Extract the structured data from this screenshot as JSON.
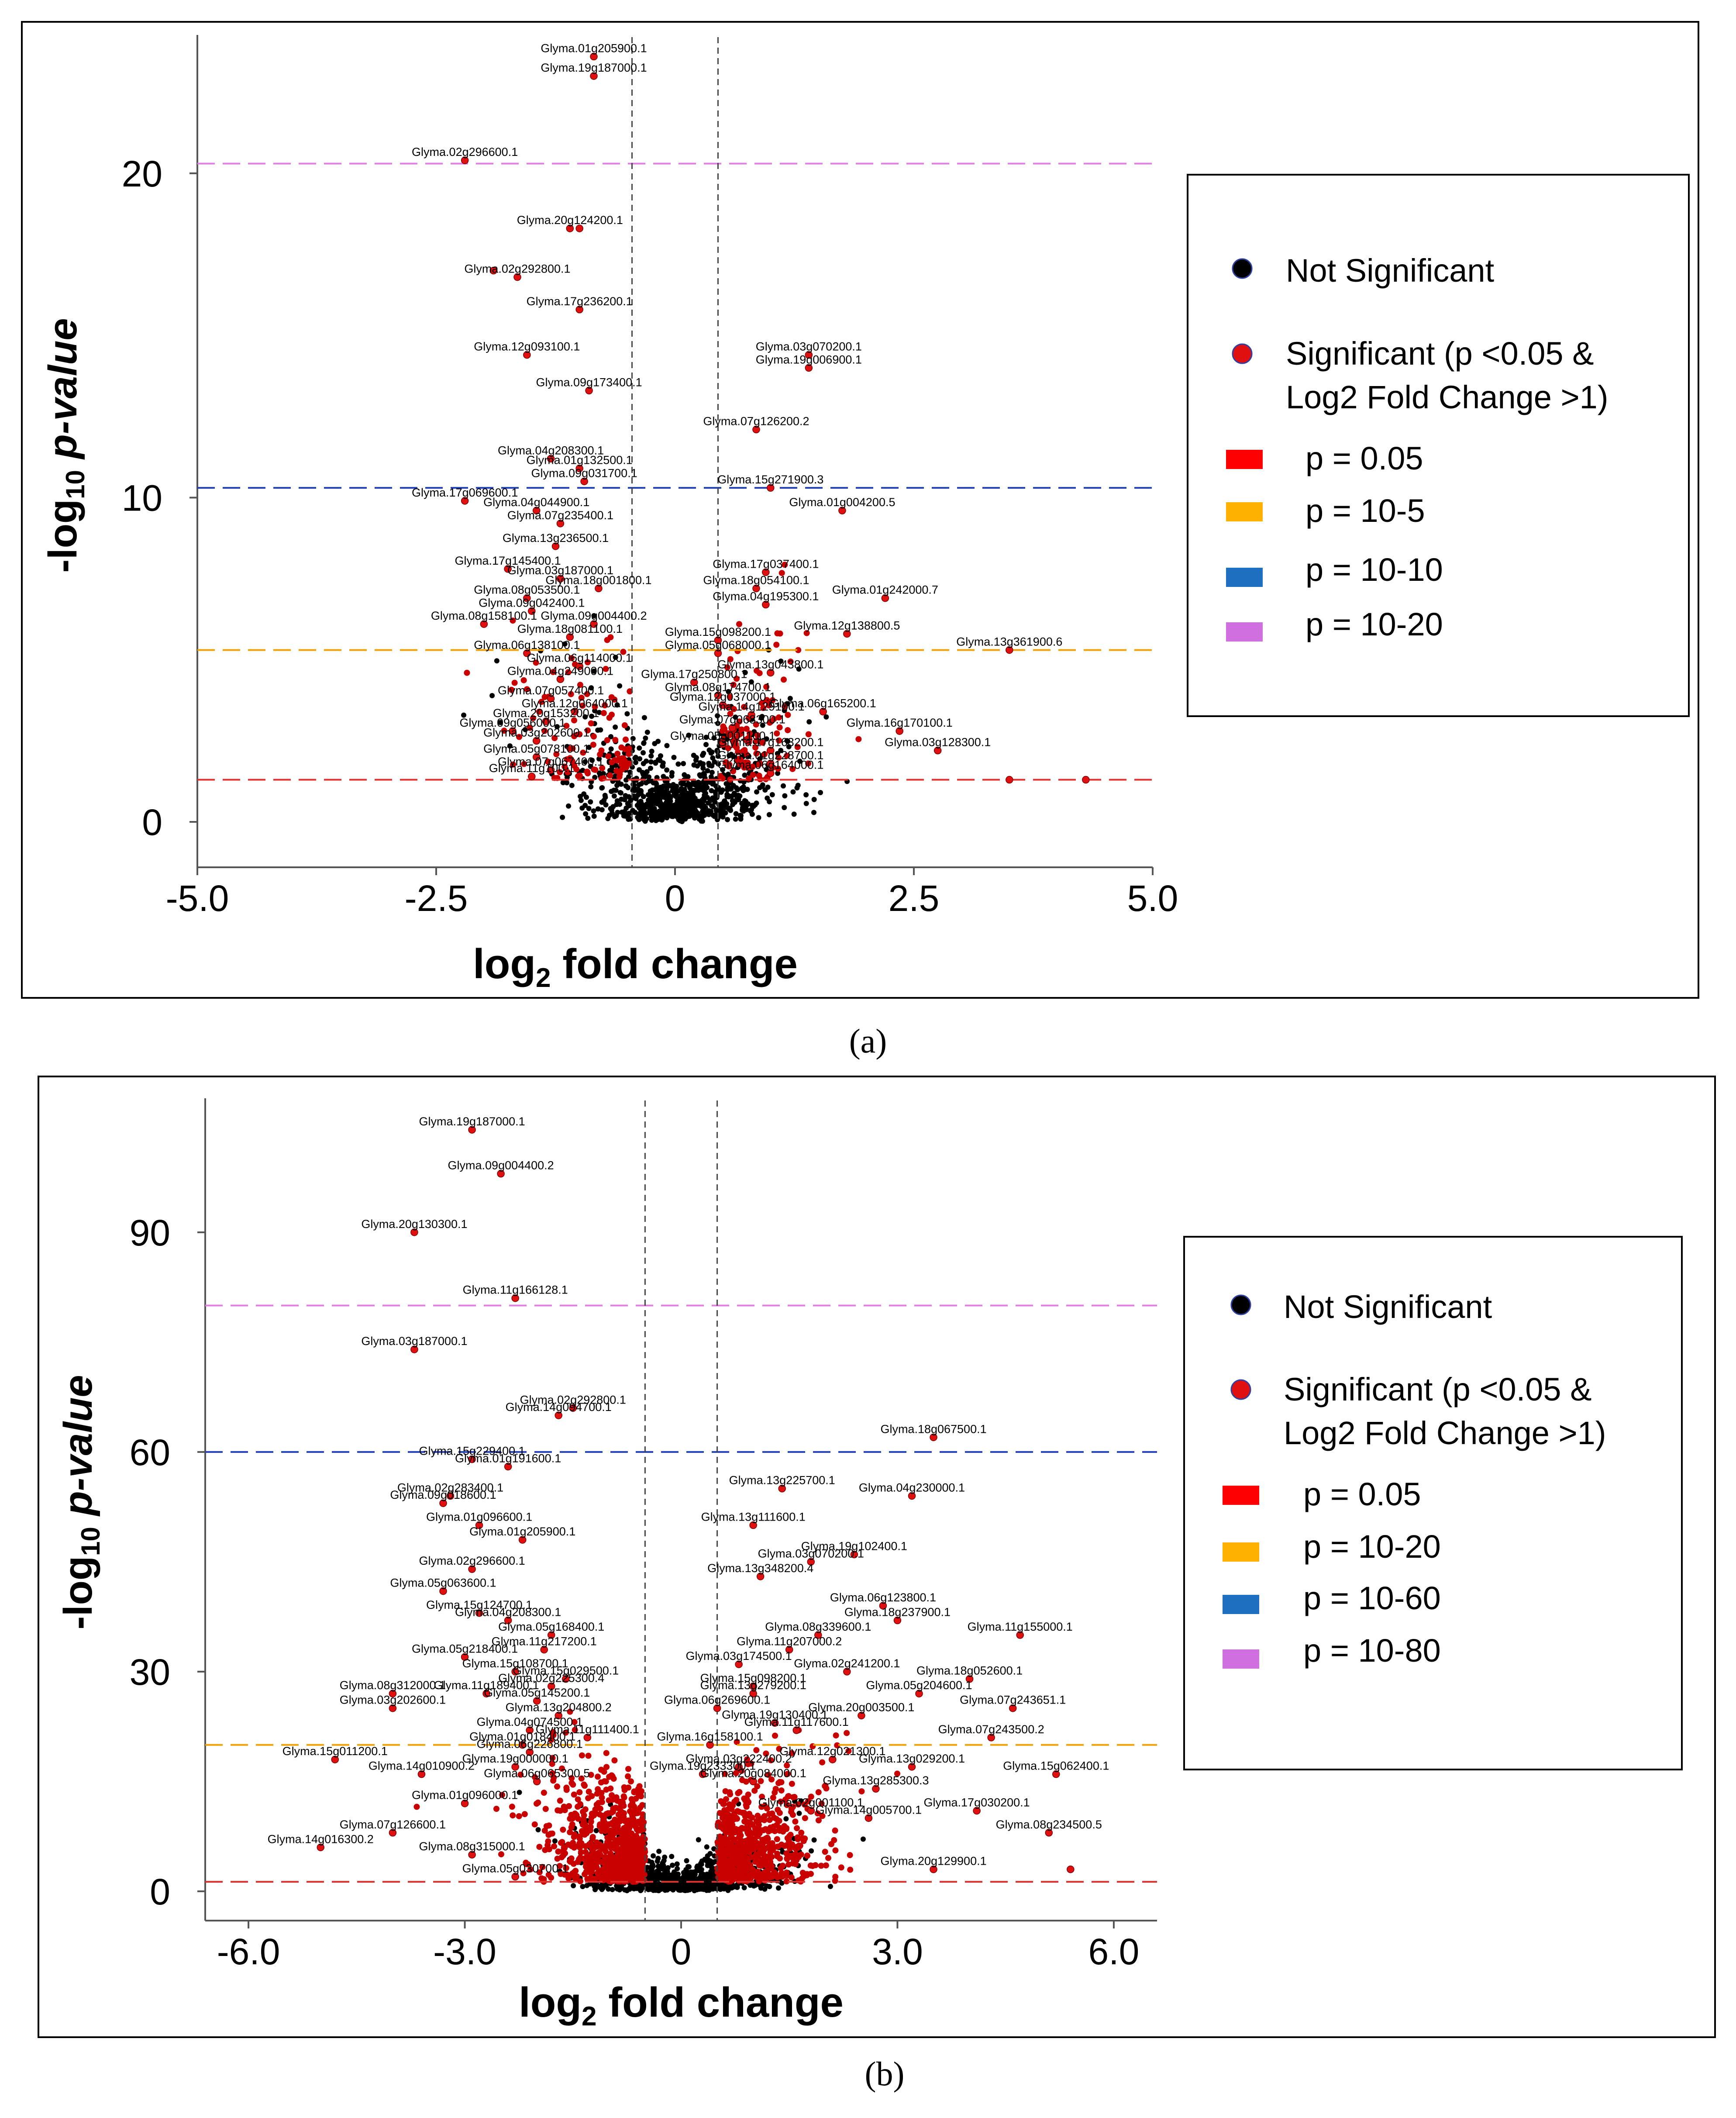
{
  "panel_a": {
    "caption": "(a)",
    "chart_data": {
      "type": "scatter",
      "title": "",
      "xlabel": "log2 fold change",
      "ylabel": "-log10 p-value",
      "x_ticks": [
        "-5.0",
        "-2.5",
        "0",
        "2.5",
        "5.0"
      ],
      "x_tick_values": [
        -5,
        -2.5,
        0,
        2.5,
        5
      ],
      "y_ticks": [
        "0",
        "10",
        "20"
      ],
      "y_tick_values": [
        0,
        10,
        20
      ],
      "xlim": [
        -5.0,
        5.0
      ],
      "ylim": [
        -1.4,
        24.2
      ],
      "fc_cutoffs": [
        -0.45,
        0.45
      ],
      "threshold_lines": [
        {
          "y": 1.3,
          "color": "#e03030",
          "label": "p = 0.05"
        },
        {
          "y": 5.3,
          "color": "#f0a000",
          "label": "p = 10-5"
        },
        {
          "y": 10.3,
          "color": "#2040c0",
          "label": "p = 10-10"
        },
        {
          "y": 20.3,
          "color": "#e080e0",
          "label": "p = 10-20"
        }
      ],
      "legend": {
        "placement": "right",
        "not_significant": "Not Significant",
        "significant_line1": "Significant (p <0.05 &",
        "significant_line2": "Log2 Fold Change >1)",
        "p_labels": [
          "p = 0.05",
          "p = 10-5",
          "p = 10-10",
          "p = 10-20"
        ],
        "p_colors": [
          "#ff0000",
          "#ffb000",
          "#1f6fc0",
          "#d070e0"
        ]
      },
      "significant_points": [
        {
          "x": -0.85,
          "y": 23.6,
          "label": "Glyma.01g205900.1"
        },
        {
          "x": -0.85,
          "y": 23.0,
          "label": "Glyma.19g187000.1"
        },
        {
          "x": -2.2,
          "y": 20.4,
          "label": "Glyma.02g296600.1"
        },
        {
          "x": -1.1,
          "y": 18.3,
          "label": "Glyma.20g124200.1"
        },
        {
          "x": -1.0,
          "y": 18.3,
          "label": ""
        },
        {
          "x": -1.9,
          "y": 17.0,
          "label": ""
        },
        {
          "x": -1.65,
          "y": 16.8,
          "label": "Glyma.02g292800.1"
        },
        {
          "x": -1.0,
          "y": 15.8,
          "label": "Glyma.17g236200.1"
        },
        {
          "x": -1.55,
          "y": 14.4,
          "label": "Glyma.12g093100.1"
        },
        {
          "x": -0.9,
          "y": 13.3,
          "label": "Glyma.09g173400.1"
        },
        {
          "x": 1.4,
          "y": 14.4,
          "label": "Glyma.03g070200.1"
        },
        {
          "x": 1.4,
          "y": 14.0,
          "label": "Glyma.19g006900.1"
        },
        {
          "x": 0.85,
          "y": 12.1,
          "label": "Glyma.07g126200.2"
        },
        {
          "x": -1.3,
          "y": 11.2,
          "label": "Glyma.04g208300.1"
        },
        {
          "x": -1.0,
          "y": 10.9,
          "label": "Glyma.01g132500.1"
        },
        {
          "x": -0.95,
          "y": 10.5,
          "label": "Glyma.09g031700.1"
        },
        {
          "x": -2.2,
          "y": 9.9,
          "label": "Glyma.17g069600.1"
        },
        {
          "x": -1.45,
          "y": 9.6,
          "label": "Glyma.04g044900.1"
        },
        {
          "x": -1.2,
          "y": 9.2,
          "label": "Glyma.07g235400.1"
        },
        {
          "x": 1.0,
          "y": 10.3,
          "label": "Glyma.15g271900.3"
        },
        {
          "x": 1.75,
          "y": 9.6,
          "label": "Glyma.01g004200.5"
        },
        {
          "x": -1.25,
          "y": 8.5,
          "label": "Glyma.13g236500.1"
        },
        {
          "x": -1.75,
          "y": 7.8,
          "label": "Glyma.17g145400.1"
        },
        {
          "x": -1.2,
          "y": 7.5,
          "label": "Glyma.03g187000.1"
        },
        {
          "x": -0.8,
          "y": 7.2,
          "label": "Glyma.18g001800.1"
        },
        {
          "x": -1.55,
          "y": 6.9,
          "label": "Glyma.08g053500.1"
        },
        {
          "x": -1.5,
          "y": 6.5,
          "label": "Glyma.09g042400.1"
        },
        {
          "x": -2.0,
          "y": 6.1,
          "label": "Glyma.08g158100.1"
        },
        {
          "x": -0.85,
          "y": 6.1,
          "label": "Glyma.09g004400.2"
        },
        {
          "x": -1.1,
          "y": 5.7,
          "label": "Glyma.18g081100.1"
        },
        {
          "x": -1.55,
          "y": 5.2,
          "label": "Glyma.06g138100.1"
        },
        {
          "x": 0.95,
          "y": 7.7,
          "label": "Glyma.17g037400.1"
        },
        {
          "x": 0.85,
          "y": 7.2,
          "label": "Glyma.18g054100.1"
        },
        {
          "x": 0.95,
          "y": 6.7,
          "label": "Glyma.04g195300.1"
        },
        {
          "x": 2.2,
          "y": 6.9,
          "label": "Glyma.01g242000.7"
        },
        {
          "x": 1.8,
          "y": 5.8,
          "label": "Glyma.12g138800.5"
        },
        {
          "x": 0.45,
          "y": 5.6,
          "label": "Glyma.15g098200.1"
        },
        {
          "x": 0.45,
          "y": 5.2,
          "label": "Glyma.05g068000.1"
        },
        {
          "x": 3.5,
          "y": 5.3,
          "label": "Glyma.13g361900.6"
        },
        {
          "x": -1.0,
          "y": 4.8,
          "label": "Glyma.06g114000.1"
        },
        {
          "x": -1.2,
          "y": 4.4,
          "label": "Glyma.04g249000.1"
        },
        {
          "x": 1.0,
          "y": 4.6,
          "label": "Glyma.13g043800.1"
        },
        {
          "x": 0.2,
          "y": 4.3,
          "label": "Glyma.17g250800.1"
        },
        {
          "x": 0.45,
          "y": 3.9,
          "label": "Glyma.08g174700.1"
        },
        {
          "x": -1.3,
          "y": 3.8,
          "label": "Glyma.07g057400.1"
        },
        {
          "x": 0.5,
          "y": 3.6,
          "label": "Glyma.12g037000.1"
        },
        {
          "x": -1.05,
          "y": 3.4,
          "label": "Glyma.12g064000.1"
        },
        {
          "x": -1.35,
          "y": 3.1,
          "label": "Glyma.20g153200.1"
        },
        {
          "x": 0.8,
          "y": 3.3,
          "label": "Glyma.14g129100.1"
        },
        {
          "x": -1.7,
          "y": 2.8,
          "label": "Glyma.09g056000.1"
        },
        {
          "x": 0.6,
          "y": 2.9,
          "label": "Glyma.07g068300.1"
        },
        {
          "x": 1.55,
          "y": 3.4,
          "label": "Glyma.06g165200.1"
        },
        {
          "x": 2.35,
          "y": 2.8,
          "label": "Glyma.16g170100.1"
        },
        {
          "x": 2.75,
          "y": 2.2,
          "label": "Glyma.03g128300.1"
        },
        {
          "x": -1.45,
          "y": 2.5,
          "label": "Glyma.03g202600.1"
        },
        {
          "x": 0.5,
          "y": 2.4,
          "label": "Glyma.05g001100.1"
        },
        {
          "x": 1.0,
          "y": 2.2,
          "label": "Glyma.17g163200.1"
        },
        {
          "x": -1.45,
          "y": 2.0,
          "label": "Glyma.05g078100.1"
        },
        {
          "x": -1.3,
          "y": 1.6,
          "label": "Glyma.07g067400.1"
        },
        {
          "x": 1.0,
          "y": 1.8,
          "label": "Glyma.01g228700.1"
        },
        {
          "x": -1.5,
          "y": 1.4,
          "label": "Glyma.11g100.1"
        },
        {
          "x": 1.0,
          "y": 1.5,
          "label": "Glyma.06g164000.1"
        },
        {
          "x": 4.3,
          "y": 1.3,
          "label": ""
        },
        {
          "x": 3.5,
          "y": 1.3,
          "label": ""
        }
      ]
    }
  },
  "panel_b": {
    "caption": "(b)",
    "chart_data": {
      "type": "scatter",
      "title": "",
      "xlabel": "log2 fold change",
      "ylabel": "-log10 p-value",
      "x_ticks": [
        "-6.0",
        "-3.0",
        "0",
        "3.0",
        "6.0"
      ],
      "x_tick_values": [
        -6,
        -3,
        0,
        3,
        6
      ],
      "y_ticks": [
        "0",
        "30",
        "60",
        "90"
      ],
      "y_tick_values": [
        0,
        30,
        60,
        90
      ],
      "xlim": [
        -6.6,
        6.6
      ],
      "ylim": [
        -4.0,
        108.0
      ],
      "fc_cutoffs": [
        -0.5,
        0.5
      ],
      "threshold_lines": [
        {
          "y": 1.3,
          "color": "#e03030",
          "label": "p = 0.05"
        },
        {
          "y": 20.0,
          "color": "#f0a000",
          "label": "p = 10-20"
        },
        {
          "y": 60.0,
          "color": "#2040c0",
          "label": "p = 10-60"
        },
        {
          "y": 80.0,
          "color": "#e080e0",
          "label": "p = 10-80"
        }
      ],
      "legend": {
        "placement": "right",
        "not_significant": "Not Significant",
        "significant_line1": "Significant (p <0.05 &",
        "significant_line2": "Log2 Fold Change >1)",
        "p_labels": [
          "p = 0.05",
          "p = 10-20",
          "p = 10-60",
          "p = 10-80"
        ],
        "p_colors": [
          "#ff0000",
          "#ffb000",
          "#1f6fc0",
          "#d070e0"
        ]
      },
      "significant_points": [
        {
          "x": -2.9,
          "y": 104,
          "label": "Glyma.19g187000.1"
        },
        {
          "x": -2.5,
          "y": 98,
          "label": "Glyma.09g004400.2"
        },
        {
          "x": -3.7,
          "y": 90,
          "label": "Glyma.20g130300.1"
        },
        {
          "x": -2.3,
          "y": 81,
          "label": "Glyma.11g166128.1"
        },
        {
          "x": -3.7,
          "y": 74,
          "label": "Glyma.03g187000.1"
        },
        {
          "x": -1.5,
          "y": 66,
          "label": "Glyma.02g292800.1"
        },
        {
          "x": -1.7,
          "y": 65,
          "label": "Glyma.14g094700.1"
        },
        {
          "x": 3.5,
          "y": 62,
          "label": "Glyma.18g067500.1"
        },
        {
          "x": -2.9,
          "y": 59,
          "label": "Glyma.15g229400.1"
        },
        {
          "x": -2.4,
          "y": 58,
          "label": "Glyma.01g191600.1"
        },
        {
          "x": 1.4,
          "y": 55,
          "label": "Glyma.13g225700.1"
        },
        {
          "x": 3.2,
          "y": 54,
          "label": "Glyma.04g230000.1"
        },
        {
          "x": -3.2,
          "y": 54,
          "label": "Glyma.02g283400.1"
        },
        {
          "x": -3.3,
          "y": 53,
          "label": "Glyma.09g018600.1"
        },
        {
          "x": -2.8,
          "y": 50,
          "label": "Glyma.01g096600.1"
        },
        {
          "x": -2.2,
          "y": 48,
          "label": "Glyma.01g205900.1"
        },
        {
          "x": 1.0,
          "y": 50,
          "label": "Glyma.13g111600.1"
        },
        {
          "x": 2.4,
          "y": 46,
          "label": "Glyma.19g102400.1"
        },
        {
          "x": 1.8,
          "y": 45,
          "label": "Glyma.03g070200.1"
        },
        {
          "x": 1.1,
          "y": 43,
          "label": "Glyma.13g348200.4"
        },
        {
          "x": -2.9,
          "y": 44,
          "label": "Glyma.02g296600.1"
        },
        {
          "x": -3.3,
          "y": 41,
          "label": "Glyma.05g063600.1"
        },
        {
          "x": -2.8,
          "y": 38,
          "label": "Glyma.15g124700.1"
        },
        {
          "x": -2.4,
          "y": 37,
          "label": "Glyma.04g208300.1"
        },
        {
          "x": -1.8,
          "y": 35,
          "label": "Glyma.05g168400.1"
        },
        {
          "x": -1.9,
          "y": 33,
          "label": "Glyma.11g217200.1"
        },
        {
          "x": -3.0,
          "y": 32,
          "label": "Glyma.05g218400.1"
        },
        {
          "x": 2.8,
          "y": 39,
          "label": "Glyma.06g123800.1"
        },
        {
          "x": 3.0,
          "y": 37,
          "label": "Glyma.18g237900.1"
        },
        {
          "x": 4.7,
          "y": 35,
          "label": "Glyma.11g155000.1"
        },
        {
          "x": 1.9,
          "y": 35,
          "label": "Glyma.08g339600.1"
        },
        {
          "x": 1.5,
          "y": 33,
          "label": "Glyma.11g207000.2"
        },
        {
          "x": -2.3,
          "y": 30,
          "label": "Glyma.15g108700.1"
        },
        {
          "x": -1.6,
          "y": 29,
          "label": "Glyma.15g029500.1"
        },
        {
          "x": -1.8,
          "y": 28,
          "label": "Glyma.02g225300.4"
        },
        {
          "x": -4.0,
          "y": 27,
          "label": "Glyma.08g312000.1"
        },
        {
          "x": -2.7,
          "y": 27,
          "label": "Glyma.11g189400.1"
        },
        {
          "x": -2.0,
          "y": 26,
          "label": "Glyma.05g145200.1"
        },
        {
          "x": -4.0,
          "y": 25,
          "label": "Glyma.03g202600.1"
        },
        {
          "x": -1.7,
          "y": 24,
          "label": "Glyma.13g204800.2"
        },
        {
          "x": -2.1,
          "y": 22,
          "label": "Glyma.04g074500.1"
        },
        {
          "x": -1.3,
          "y": 21,
          "label": "Glyma.11g111400.1"
        },
        {
          "x": 0.8,
          "y": 31,
          "label": "Glyma.03g174500.1"
        },
        {
          "x": 2.3,
          "y": 30,
          "label": "Glyma.02g241200.1"
        },
        {
          "x": 1.0,
          "y": 28,
          "label": "Glyma.15g098200.1"
        },
        {
          "x": 1.0,
          "y": 27,
          "label": "Glyma.13g279200.1"
        },
        {
          "x": 0.5,
          "y": 25,
          "label": "Glyma.06g269600.1"
        },
        {
          "x": 4.0,
          "y": 29,
          "label": "Glyma.18g052600.1"
        },
        {
          "x": 3.3,
          "y": 27,
          "label": "Glyma.05g204600.1"
        },
        {
          "x": 4.6,
          "y": 25,
          "label": "Glyma.07g243651.1"
        },
        {
          "x": 2.5,
          "y": 24,
          "label": "Glyma.20g003500.1"
        },
        {
          "x": 1.3,
          "y": 23,
          "label": "Glyma.19g130400.1"
        },
        {
          "x": 1.6,
          "y": 22,
          "label": "Glyma.11g117600.1"
        },
        {
          "x": 4.3,
          "y": 21,
          "label": "Glyma.07g243500.2"
        },
        {
          "x": -2.2,
          "y": 20,
          "label": "Glyma.01g018400.1"
        },
        {
          "x": -2.1,
          "y": 19,
          "label": "Glyma.06g226800.1"
        },
        {
          "x": 0.4,
          "y": 20,
          "label": "Glyma.16g158100.1"
        },
        {
          "x": -4.8,
          "y": 18,
          "label": "Glyma.15g011200.1"
        },
        {
          "x": -3.6,
          "y": 16,
          "label": "Glyma.14g010900.2"
        },
        {
          "x": 2.1,
          "y": 18,
          "label": "Glyma.12g021300.1"
        },
        {
          "x": 0.8,
          "y": 17,
          "label": "Glyma.03g222400.2"
        },
        {
          "x": 3.2,
          "y": 17,
          "label": "Glyma.13g029200.1"
        },
        {
          "x": 5.2,
          "y": 16,
          "label": "Glyma.15g062400.1"
        },
        {
          "x": 0.3,
          "y": 16,
          "label": "Glyma.19g233300.1"
        },
        {
          "x": 1.0,
          "y": 15,
          "label": "Glyma.20g084000.1"
        },
        {
          "x": 2.7,
          "y": 14,
          "label": "Glyma.13g285300.3"
        },
        {
          "x": -2.3,
          "y": 17,
          "label": "Glyma.19g000000.1"
        },
        {
          "x": -2.0,
          "y": 15,
          "label": "Glyma.06g065300.5"
        },
        {
          "x": -3.0,
          "y": 12,
          "label": "Glyma.01g096000.1"
        },
        {
          "x": 1.8,
          "y": 11,
          "label": "Glyma.02g001100.1"
        },
        {
          "x": 4.1,
          "y": 11,
          "label": "Glyma.17g030200.1"
        },
        {
          "x": 2.6,
          "y": 10,
          "label": "Glyma.14g005700.1"
        },
        {
          "x": 5.1,
          "y": 8,
          "label": "Glyma.08g234500.5"
        },
        {
          "x": -4.0,
          "y": 8,
          "label": "Glyma.07g126600.1"
        },
        {
          "x": -5.0,
          "y": 6,
          "label": "Glyma.14g016300.2"
        },
        {
          "x": -2.9,
          "y": 5,
          "label": "Glyma.08g315000.1"
        },
        {
          "x": -2.3,
          "y": 2,
          "label": "Glyma.05g030700.1"
        },
        {
          "x": 3.5,
          "y": 3,
          "label": "Glyma.20g129900.1"
        },
        {
          "x": 5.4,
          "y": 3,
          "label": ""
        }
      ]
    }
  }
}
